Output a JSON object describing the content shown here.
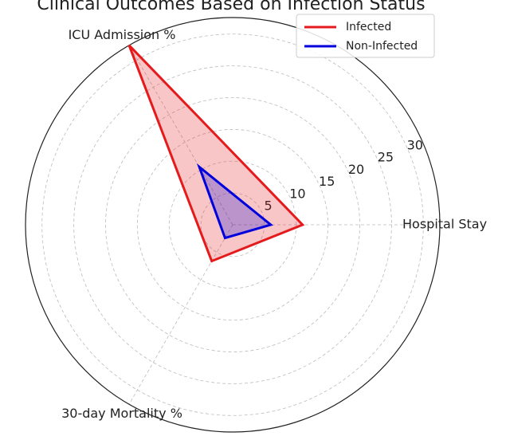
{
  "chart_data": {
    "type": "radar",
    "title": "Clinical Outcomes Based on Infection Status",
    "categories": [
      "Hospital Stay",
      "ICU Admission %",
      "30-day Mortality %"
    ],
    "series": [
      {
        "name": "Infected",
        "color": "#e41a1c",
        "values": [
          11,
          32.6,
          6.6
        ]
      },
      {
        "name": "Non-Infected",
        "color": "#0000dd",
        "values": [
          6,
          10.5,
          2.4
        ]
      }
    ],
    "ylim": [
      0,
      32.6
    ],
    "yticks": [
      5,
      10,
      15,
      20,
      25,
      30
    ],
    "grid": true,
    "legend": "upper right"
  }
}
